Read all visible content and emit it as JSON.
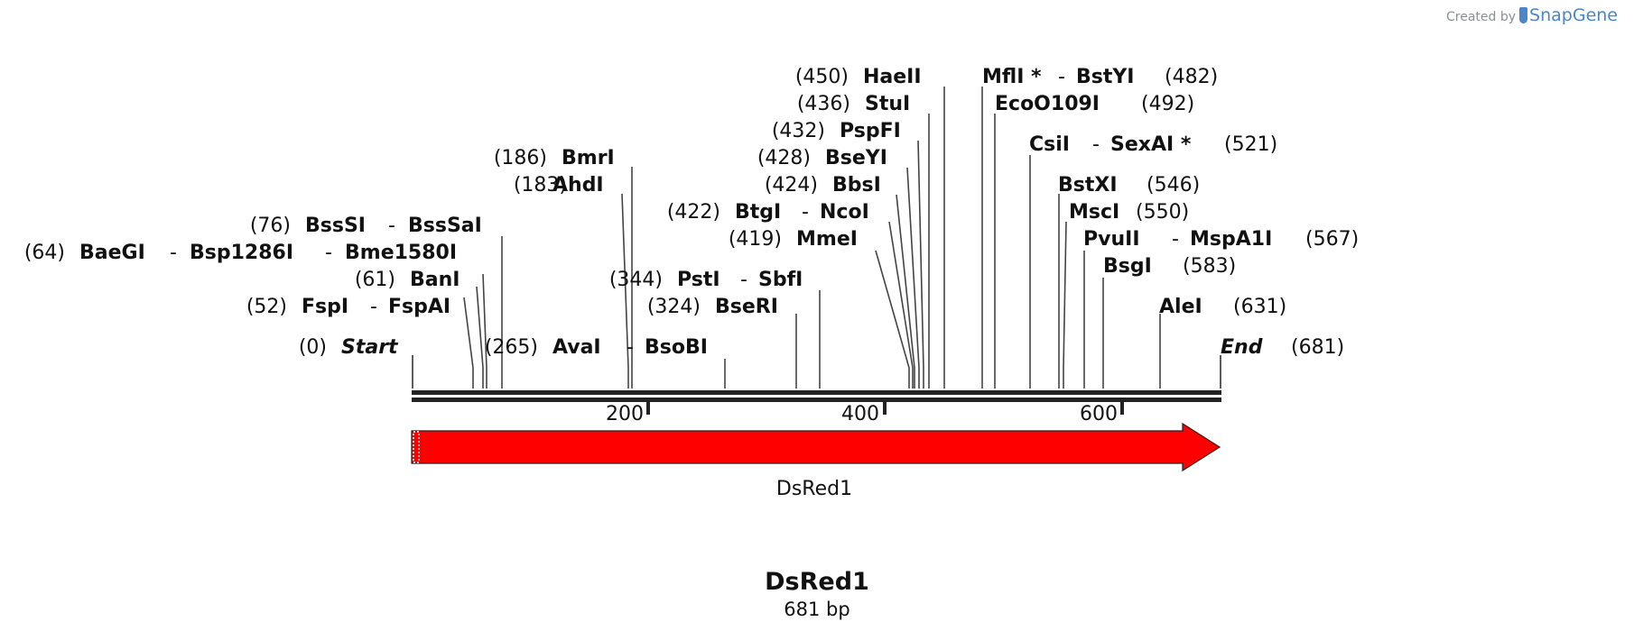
{
  "credit": {
    "prefix": "Created by",
    "brand": "SnapGene"
  },
  "map": {
    "name": "DsRed1",
    "length_label": "681 bp",
    "length": 681,
    "start_label": "Start",
    "end_label": "End",
    "start_pos": "(0)",
    "end_pos": "(681)",
    "ticks": [
      "200",
      "400",
      "600"
    ],
    "feature": {
      "name": "DsRed1",
      "from": 1,
      "to": 678,
      "direction": "forward",
      "color": "#ff0000"
    }
  },
  "sites": [
    {
      "position": 52,
      "labels": [
        "(52)",
        "FspI",
        "-",
        "FspAI"
      ]
    },
    {
      "position": 61,
      "labels": [
        "(61)",
        "BanI"
      ]
    },
    {
      "position": 64,
      "labels": [
        "(64)",
        "BaeGI",
        "-",
        "Bsp1286I",
        "-",
        "Bme1580I"
      ]
    },
    {
      "position": 76,
      "labels": [
        "(76)",
        "BssSI",
        "-",
        "BssSaI"
      ]
    },
    {
      "position": 183,
      "labels": [
        "(183)",
        "AhdI"
      ]
    },
    {
      "position": 186,
      "labels": [
        "(186)",
        "BmrI"
      ]
    },
    {
      "position": 265,
      "labels": [
        "(265)",
        "AvaI",
        "-",
        "BsoBI"
      ]
    },
    {
      "position": 324,
      "labels": [
        "(324)",
        "BseRI"
      ]
    },
    {
      "position": 344,
      "labels": [
        "(344)",
        "PstI",
        "-",
        "SbfI"
      ]
    },
    {
      "position": 419,
      "labels": [
        "(419)",
        "MmeI"
      ]
    },
    {
      "position": 422,
      "labels": [
        "(422)",
        "BtgI",
        "-",
        "NcoI"
      ]
    },
    {
      "position": 424,
      "labels": [
        "(424)",
        "BbsI"
      ]
    },
    {
      "position": 428,
      "labels": [
        "(428)",
        "BseYI"
      ]
    },
    {
      "position": 432,
      "labels": [
        "(432)",
        "PspFI"
      ]
    },
    {
      "position": 436,
      "labels": [
        "(436)",
        "StuI"
      ]
    },
    {
      "position": 450,
      "labels": [
        "(450)",
        "HaeII"
      ]
    },
    {
      "position": 482,
      "labels": [
        "MflI *",
        "-",
        "BstYI",
        "(482)"
      ]
    },
    {
      "position": 492,
      "labels": [
        "EcoO109I",
        "(492)"
      ]
    },
    {
      "position": 521,
      "labels": [
        "CsiI",
        "-",
        "SexAI *",
        "(521)"
      ]
    },
    {
      "position": 546,
      "labels": [
        "BstXI",
        "(546)"
      ]
    },
    {
      "position": 550,
      "labels": [
        "MscI",
        "(550)"
      ]
    },
    {
      "position": 567,
      "labels": [
        "PvuII",
        "-",
        "MspA1I",
        "(567)"
      ]
    },
    {
      "position": 583,
      "labels": [
        "BsgI",
        "(583)"
      ]
    },
    {
      "position": 631,
      "labels": [
        "AleI",
        "(631)"
      ]
    }
  ]
}
